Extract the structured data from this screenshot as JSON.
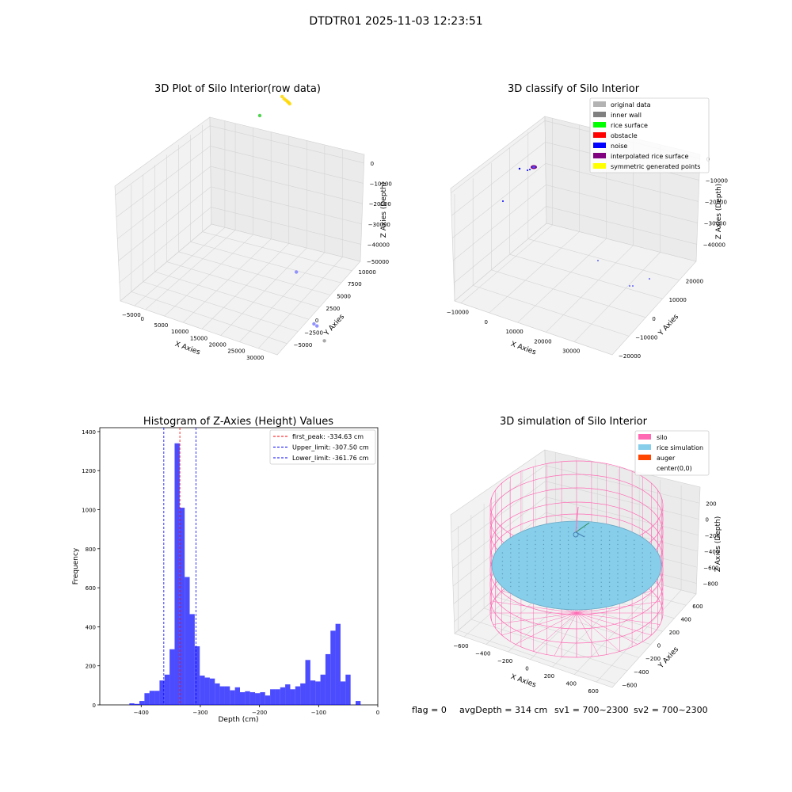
{
  "suptitle": "DTDTR01 2025-11-03 12:23:51",
  "footer": {
    "flag": "flag = 0",
    "avg_depth": "avgDepth = 314 cm",
    "sv1": "sv1 = 700~2300",
    "sv2": "sv2 = 700~2300"
  },
  "colors": {
    "histogram_bar": "#0000ff",
    "first_peak_line": "#ff0000",
    "limit_line": "#0000ff",
    "silo": "#ff69b4",
    "rice_simulation": "#87ceeb",
    "auger": "#ff4500",
    "original_data": "#b3b3b3",
    "inner_wall": "#808080",
    "rice_surface": "#00ff00",
    "obstacle": "#ff0000",
    "noise": "#0000ff",
    "interpolated_rice_surface": "#800080",
    "symmetric_generated_points": "#ffff00"
  },
  "chart_data": [
    {
      "type": "scatter",
      "projection": "3d",
      "title": "3D Plot of Silo Interior(row data)",
      "xlabel": "X Axies",
      "ylabel": "Y Axies",
      "zlabel": "Z Axies (Depth)",
      "x_ticks": [
        "−5000",
        "0",
        "5000",
        "10000",
        "15000",
        "20000",
        "25000",
        "30000"
      ],
      "y_ticks": [
        "−5000",
        "−2500",
        "0",
        "2500",
        "5000",
        "7500",
        "10000"
      ],
      "z_ticks": [
        "0",
        "−10000",
        "−20000",
        "−30000",
        "−40000",
        "−50000"
      ],
      "points": [
        {
          "x": -5000,
          "y": 9000,
          "z": -15000,
          "color": "#32cd32"
        },
        {
          "x": 600,
          "y": 8500,
          "z": 500,
          "color": "#ffd700"
        },
        {
          "x": 1200,
          "y": 8400,
          "z": 200,
          "color": "#ffd700"
        },
        {
          "x": 1800,
          "y": 8300,
          "z": 300,
          "color": "#ffd700"
        },
        {
          "x": 2300,
          "y": 8200,
          "z": 400,
          "color": "#ffd700"
        },
        {
          "x": 2700,
          "y": 8100,
          "z": 600,
          "color": "#ffd700"
        },
        {
          "x": 3100,
          "y": 8000,
          "z": 700,
          "color": "#ffd700"
        },
        {
          "x": 18000,
          "y": 500,
          "z": -43000,
          "color": "#8080ff"
        },
        {
          "x": 28000,
          "y": -3000,
          "z": -48000,
          "color": "#8080ff"
        },
        {
          "x": 29000,
          "y": -3200,
          "z": -47500,
          "color": "#8080ff"
        },
        {
          "x": 32000,
          "y": -4000,
          "z": -49500,
          "color": "#999999"
        }
      ]
    },
    {
      "type": "scatter",
      "projection": "3d",
      "title": "3D classify of Silo Interior",
      "xlabel": "X Axies",
      "ylabel": "Y Axies",
      "zlabel": "Z Axies (Depth)",
      "x_ticks": [
        "−10000",
        "0",
        "10000",
        "20000",
        "30000"
      ],
      "y_ticks": [
        "−20000",
        "−10000",
        "0",
        "10000",
        "20000"
      ],
      "z_ticks": [
        "0",
        "−10000",
        "−20000",
        "−30000",
        "−40000"
      ],
      "legend": [
        {
          "label": "original data",
          "color_key": "original_data"
        },
        {
          "label": "inner wall",
          "color_key": "inner_wall"
        },
        {
          "label": "rice surface",
          "color_key": "rice_surface"
        },
        {
          "label": "obstacle",
          "color_key": "obstacle"
        },
        {
          "label": "noise",
          "color_key": "noise"
        },
        {
          "label": "interpolated rice surface",
          "color_key": "interpolated_rice_surface"
        },
        {
          "label": "symmetric generated points",
          "color_key": "symmetric_generated_points"
        }
      ],
      "legend_loc": "upper right"
    },
    {
      "type": "bar",
      "title": "Histogram of Z-Axies (Height) Values",
      "xlabel": "Depth (cm)",
      "ylabel": "Frequency",
      "xlim": [
        -470,
        0
      ],
      "ylim": [
        0,
        1420
      ],
      "x_ticks": [
        -400,
        -300,
        -200,
        -100,
        0
      ],
      "x_tick_labels": [
        "−400",
        "−300",
        "−200",
        "−100",
        "0"
      ],
      "y_ticks": [
        0,
        200,
        400,
        600,
        800,
        1000,
        1200,
        1400
      ],
      "y_tick_labels": [
        "0",
        "200",
        "400",
        "600",
        "800",
        "1000",
        "1200",
        "1400"
      ],
      "bin_start": -420,
      "bin_width": 8.5,
      "values": [
        8,
        5,
        20,
        60,
        72,
        72,
        125,
        155,
        285,
        1340,
        1010,
        655,
        465,
        300,
        150,
        140,
        135,
        110,
        95,
        95,
        75,
        90,
        65,
        70,
        65,
        60,
        65,
        48,
        80,
        80,
        90,
        105,
        80,
        95,
        110,
        230,
        125,
        120,
        155,
        260,
        380,
        415,
        120,
        155,
        0,
        20
      ],
      "vlines": [
        {
          "x": -334.63,
          "label": "first_peak: -334.63 cm",
          "color_key": "first_peak_line"
        },
        {
          "x": -307.5,
          "label": "Upper_limit: -307.50 cm",
          "color_key": "limit_line"
        },
        {
          "x": -361.76,
          "label": "Lower_limit: -361.76 cm",
          "color_key": "limit_line"
        }
      ],
      "legend_loc": "upper right"
    },
    {
      "type": "surface",
      "projection": "3d",
      "title": "3D simulation of Silo Interior",
      "xlabel": "X Axies",
      "ylabel": "Y Axies",
      "zlabel": "Z Axies (Depth)",
      "x_ticks": [
        "−600",
        "−400",
        "−200",
        "0",
        "200",
        "400",
        "600"
      ],
      "y_ticks": [
        "−600",
        "−400",
        "−200",
        "0",
        "200",
        "400",
        "600"
      ],
      "z_ticks": [
        "200",
        "0",
        "−200",
        "−400",
        "−600",
        "−800"
      ],
      "legend": [
        {
          "label": "silo",
          "color_key": "silo"
        },
        {
          "label": "rice simulation",
          "color_key": "rice_simulation"
        },
        {
          "label": "auger",
          "color_key": "auger"
        },
        {
          "label": "center(0,0)",
          "color_key": ""
        }
      ],
      "legend_loc": "upper right"
    }
  ]
}
